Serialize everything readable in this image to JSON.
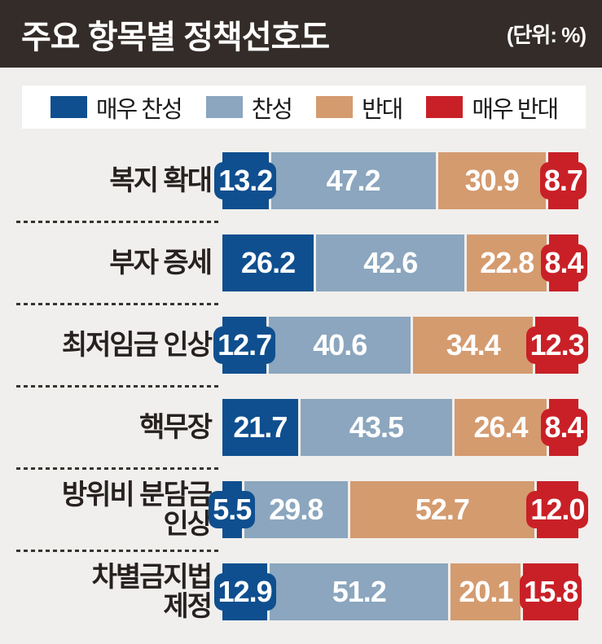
{
  "header": {
    "title": "주요 항목별 정책선호도",
    "unit_label": "(단위: %)"
  },
  "colors": {
    "header_bg": "#342c28",
    "page_bg": "#f0efed",
    "legend_bg": "#ffffff",
    "label_text": "#272120",
    "strongly_agree": "#0f4f8f",
    "agree": "#8ba6be",
    "oppose": "#d49b6f",
    "strongly_oppose": "#c92027"
  },
  "chart_data": {
    "type": "bar",
    "orientation": "horizontal",
    "stacked": true,
    "title": "주요 항목별 정책선호도",
    "unit": "%",
    "xlim": [
      0,
      100
    ],
    "legend_position": "top",
    "series": [
      {
        "name": "매우 찬성",
        "color": "#0f4f8f"
      },
      {
        "name": "찬성",
        "color": "#8ba6be"
      },
      {
        "name": "반대",
        "color": "#d49b6f"
      },
      {
        "name": "매우 반대",
        "color": "#c92027"
      }
    ],
    "categories": [
      "복지 확대",
      "부자 증세",
      "최저임금 인상",
      "핵무장",
      "방위비 분담금 인상",
      "차별금지법 제정"
    ],
    "category_label_lines": [
      [
        "복지 확대"
      ],
      [
        "부자 증세"
      ],
      [
        "최저임금 인상"
      ],
      [
        "핵무장"
      ],
      [
        "방위비 분담금",
        "인상"
      ],
      [
        "차별금지법",
        "제정"
      ]
    ],
    "values": [
      [
        13.2,
        47.2,
        30.9,
        8.7
      ],
      [
        26.2,
        42.6,
        22.8,
        8.4
      ],
      [
        12.7,
        40.6,
        34.4,
        12.3
      ],
      [
        21.7,
        43.5,
        26.4,
        8.4
      ],
      [
        5.5,
        29.8,
        52.7,
        12.0
      ],
      [
        12.9,
        51.2,
        20.1,
        15.8
      ]
    ]
  }
}
